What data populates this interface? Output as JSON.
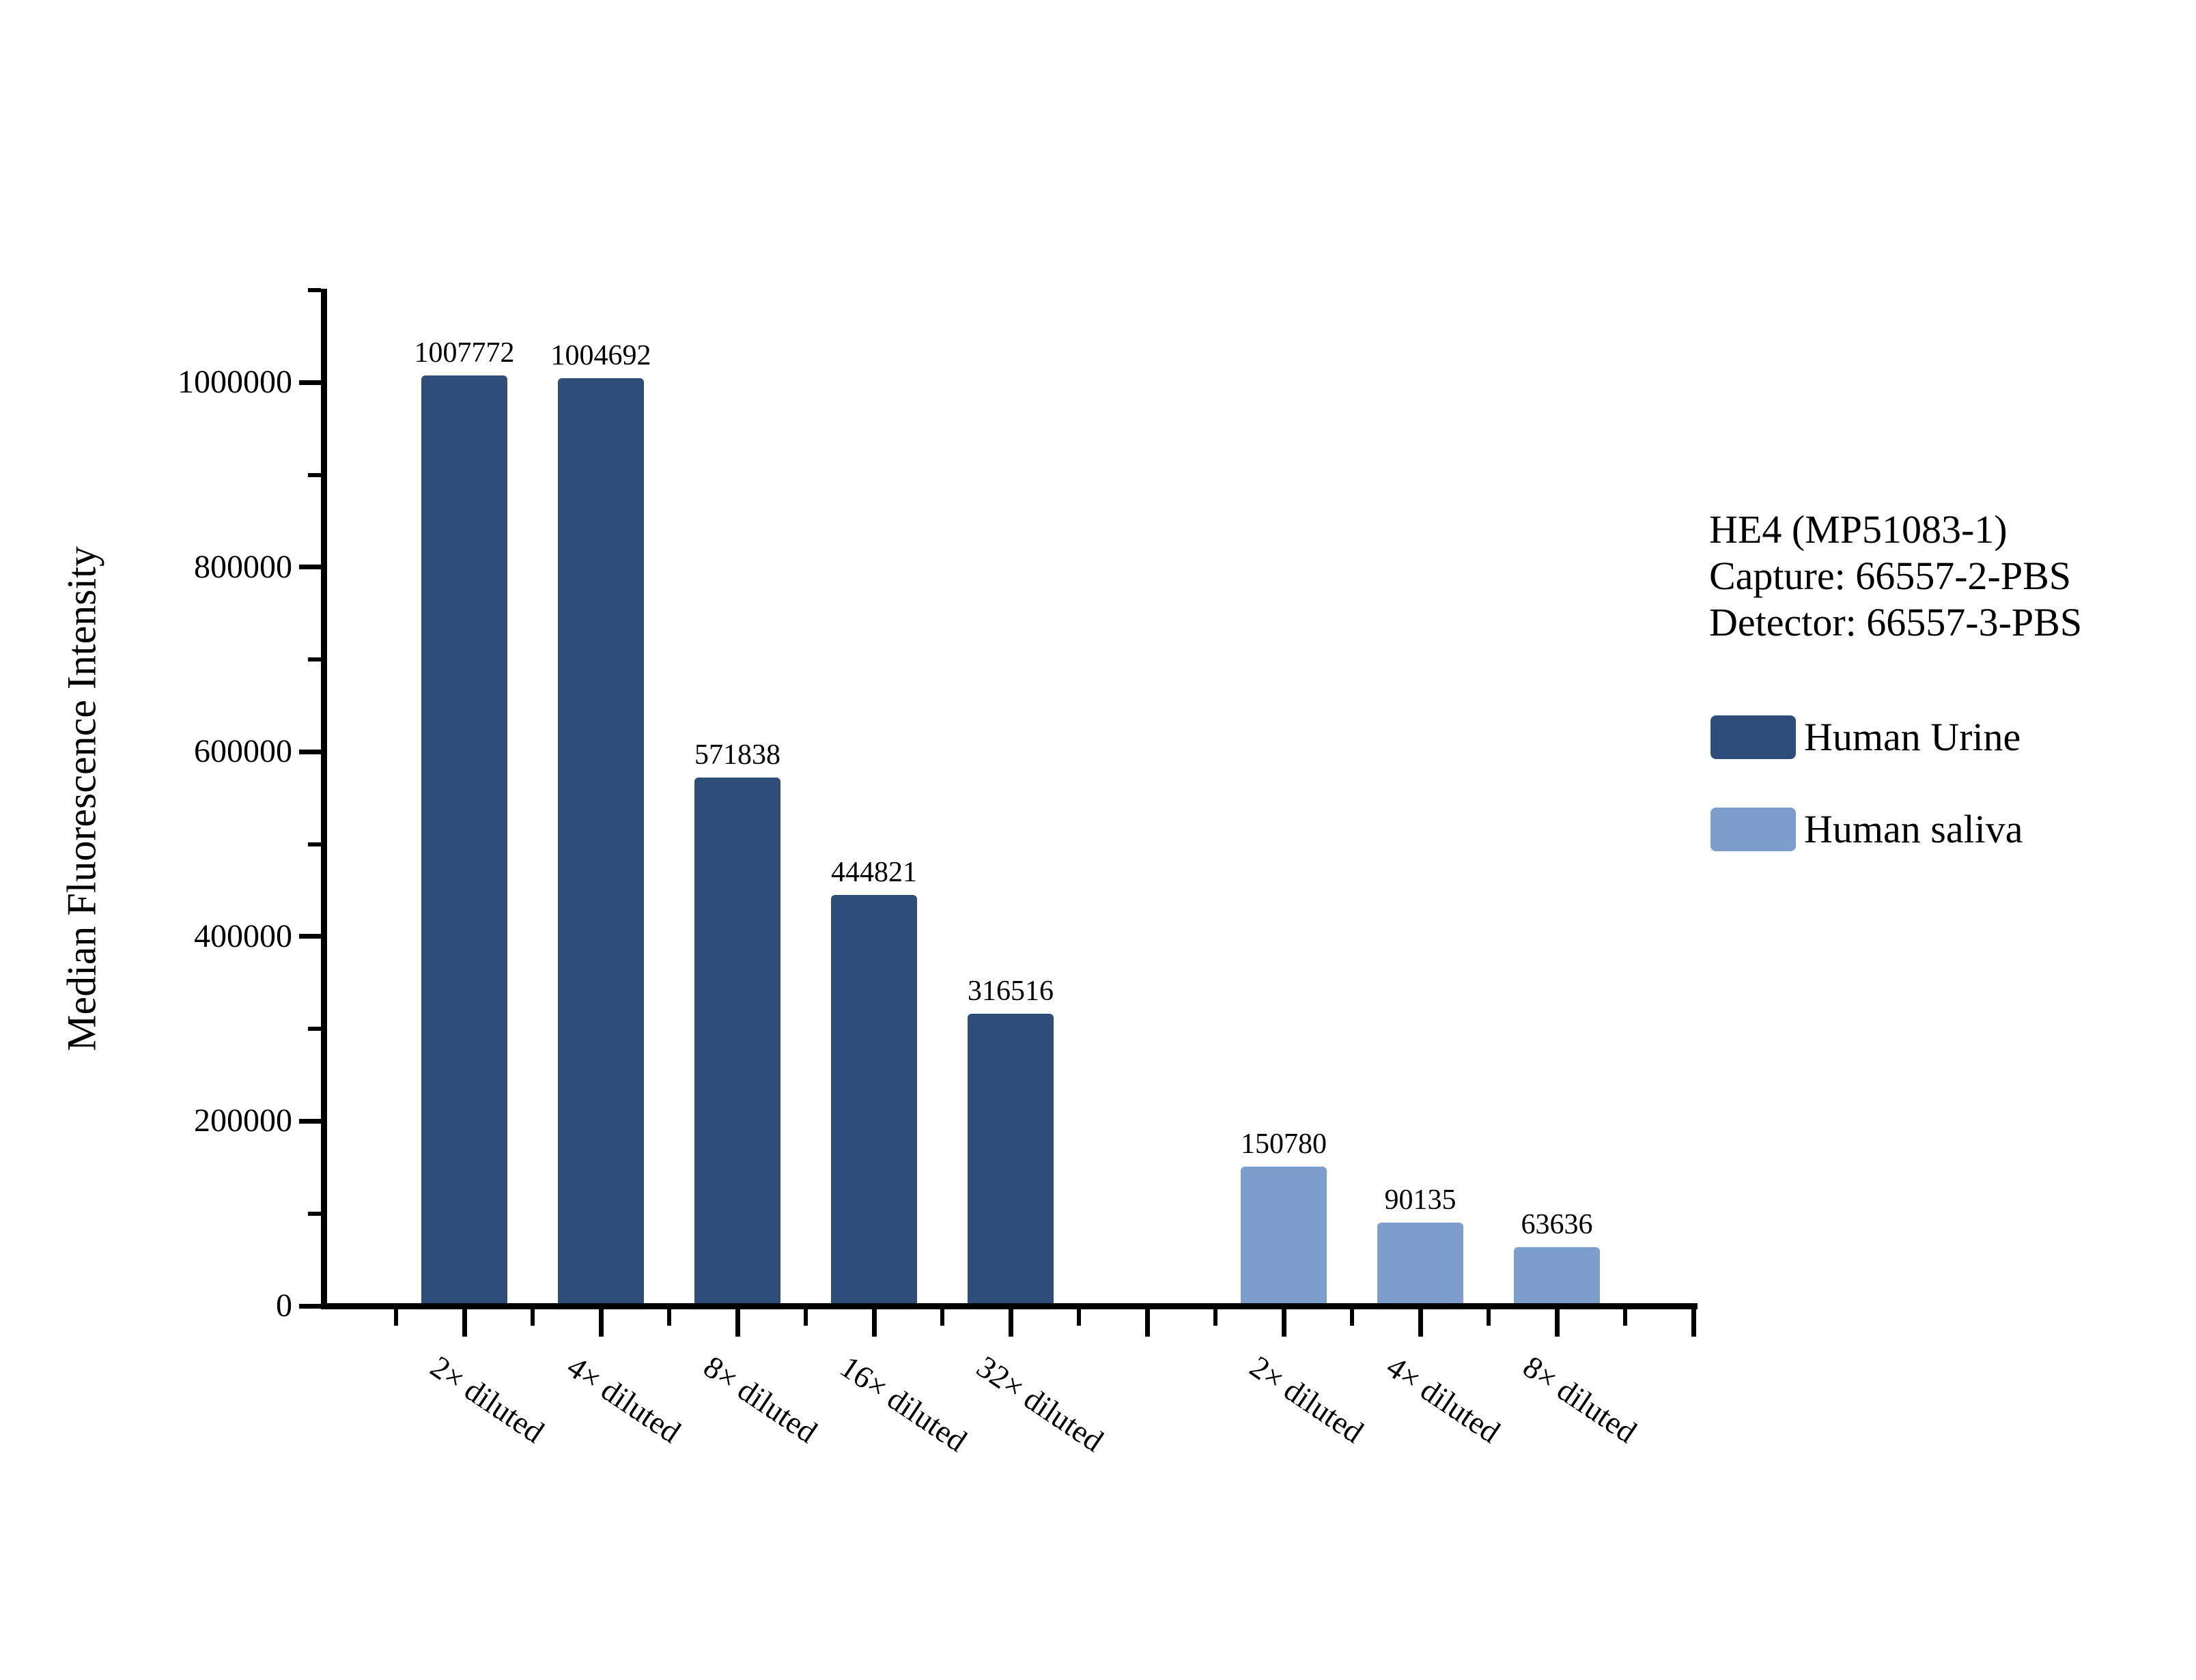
{
  "chart_data": {
    "type": "bar",
    "title": "",
    "annotation_lines": [
      "HE4 (MP51083-1)",
      "Capture: 66557-2-PBS",
      "Detector: 66557-3-PBS"
    ],
    "ylabel": "Median Fluorescence Intensity",
    "xlabel": "",
    "ylim": [
      0,
      1100000
    ],
    "y_major_ticks": [
      0,
      200000,
      400000,
      600000,
      800000,
      1000000
    ],
    "y_major_tick_labels": [
      "0",
      "200000",
      "400000",
      "600000",
      "800000",
      "1000000"
    ],
    "y_minor_tick_values": [
      100000,
      300000,
      500000,
      700000,
      900000,
      1100000
    ],
    "grid": false,
    "legend_position": "right",
    "legend": [
      {
        "name": "Human Urine",
        "color": "#2E4D78"
      },
      {
        "name": "Human saliva",
        "color": "#7D9DCC"
      }
    ],
    "series": [
      {
        "name": "Human Urine",
        "color": "#2E4D78",
        "bars": [
          {
            "label": "2× diluted",
            "value": 1007772,
            "value_label": "1007772"
          },
          {
            "label": "4× diluted",
            "value": 1004692,
            "value_label": "1004692"
          },
          {
            "label": "8× diluted",
            "value": 571838,
            "value_label": "571838"
          },
          {
            "label": "16× diluted",
            "value": 444821,
            "value_label": "444821"
          },
          {
            "label": "32× diluted",
            "value": 316516,
            "value_label": "316516"
          }
        ]
      },
      {
        "name": "Human saliva",
        "color": "#7D9DCC",
        "bars": [
          {
            "label": "2× diluted",
            "value": 150780,
            "value_label": "150780"
          },
          {
            "label": "4× diluted",
            "value": 90135,
            "value_label": "90135"
          },
          {
            "label": "8× diluted",
            "value": 63636,
            "value_label": "63636"
          }
        ]
      }
    ],
    "gap_slots_between_series": 1
  }
}
